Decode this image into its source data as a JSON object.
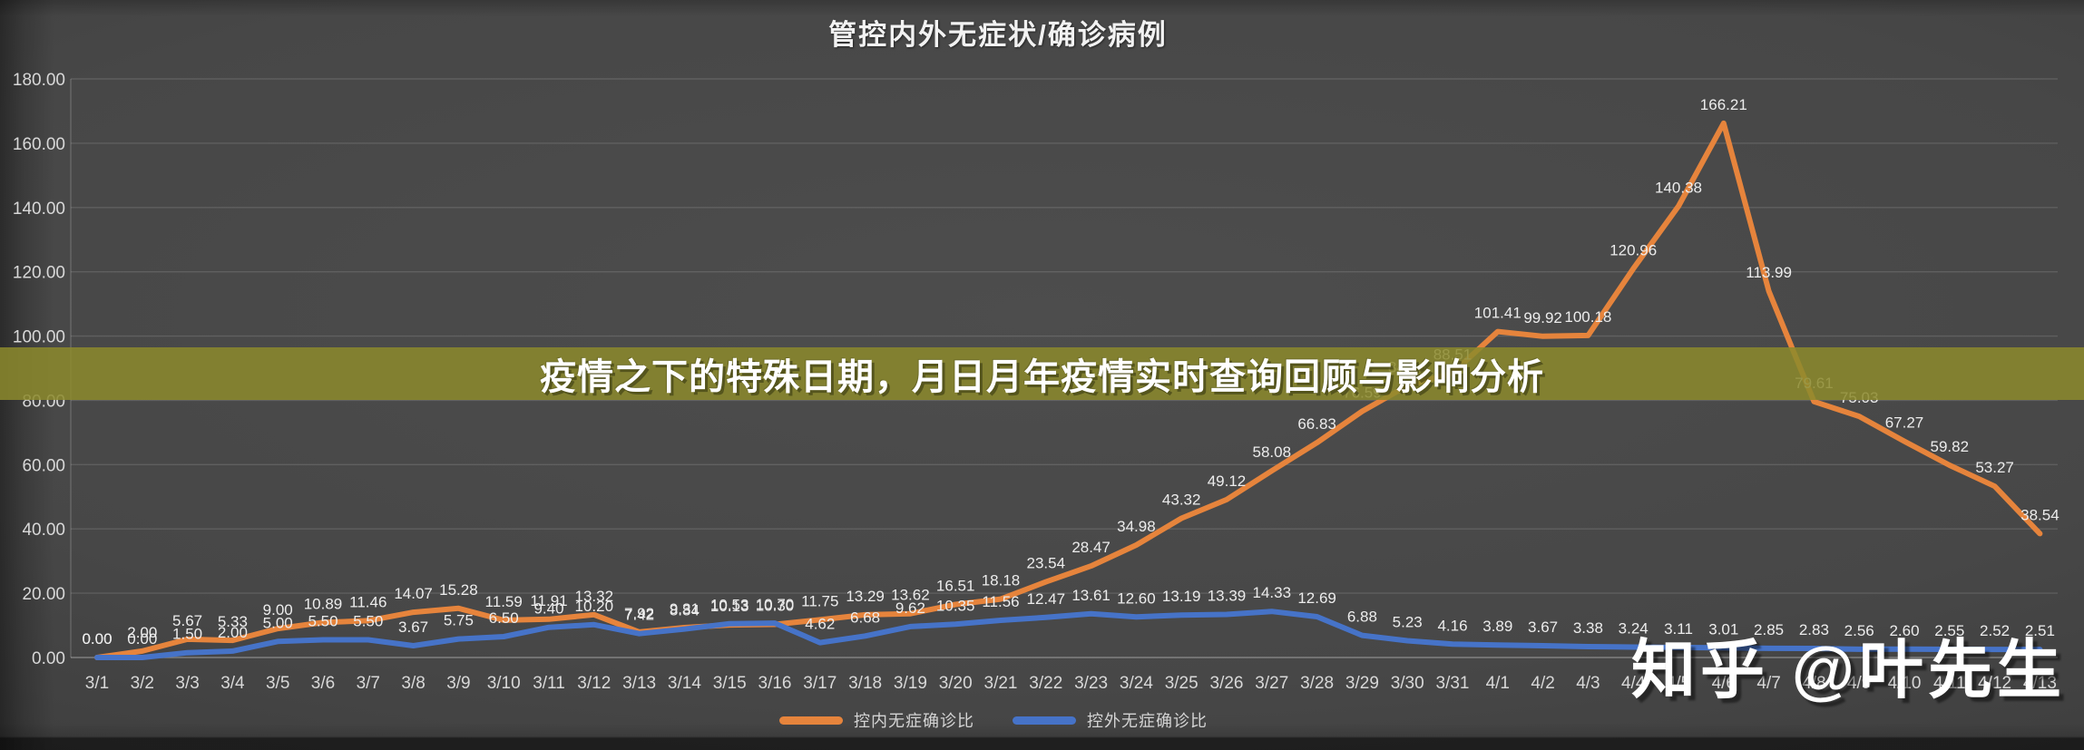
{
  "title": "管控内外无症状/确诊病例",
  "banner": {
    "text": "疫情之下的特殊日期，月日月年疫情实时查询回顾与影响分析",
    "color": "#8c892c"
  },
  "watermark": {
    "text": "知乎 @叶先生"
  },
  "legend": [
    {
      "label": "控内无症确诊比",
      "color": "#e6843c"
    },
    {
      "label": "控外无症确诊比",
      "color": "#4673c8"
    }
  ],
  "chart_data": {
    "type": "line",
    "title": "管控内外无症状/确诊病例",
    "xlabel": "",
    "ylabel": "",
    "ylim": [
      0,
      180
    ],
    "ytick_step": 20,
    "ytick_labels": [
      "0.00",
      "20.00",
      "40.00",
      "60.00",
      "80.00",
      "100.00",
      "120.00",
      "140.00",
      "160.00",
      "180.00"
    ],
    "grid": true,
    "legend_position": "bottom",
    "data_labels": true,
    "categories": [
      "3/1",
      "3/2",
      "3/3",
      "3/4",
      "3/5",
      "3/6",
      "3/7",
      "3/8",
      "3/9",
      "3/10",
      "3/11",
      "3/12",
      "3/13",
      "3/14",
      "3/15",
      "3/16",
      "3/17",
      "3/18",
      "3/19",
      "3/20",
      "3/21",
      "3/22",
      "3/23",
      "3/24",
      "3/25",
      "3/26",
      "3/27",
      "3/28",
      "3/29",
      "3/30",
      "3/31",
      "4/1",
      "4/2",
      "4/3",
      "4/4",
      "4/5",
      "4/6",
      "4/7",
      "4/8",
      "4/9",
      "4/10",
      "4/11",
      "4/12",
      "4/13"
    ],
    "series": [
      {
        "name": "控内无症确诊比",
        "color": "#e6843c",
        "values": [
          0.0,
          2.0,
          5.67,
          5.33,
          9.0,
          10.89,
          11.46,
          14.07,
          15.28,
          11.59,
          11.91,
          13.32,
          7.92,
          9.31,
          10.13,
          10.3,
          11.75,
          13.29,
          13.62,
          16.51,
          18.18,
          23.54,
          28.47,
          34.98,
          43.32,
          49.12,
          58.08,
          66.83,
          76.59,
          84.56,
          88.51,
          101.41,
          99.92,
          100.18,
          120.96,
          140.38,
          166.21,
          113.99,
          79.61,
          75.03,
          67.27,
          59.82,
          53.27,
          38.54
        ]
      },
      {
        "name": "控外无症确诊比",
        "color": "#4673c8",
        "values": [
          0.0,
          0.0,
          1.5,
          2.0,
          5.0,
          5.5,
          5.5,
          3.67,
          5.75,
          6.5,
          9.4,
          10.2,
          7.42,
          8.84,
          10.53,
          10.7,
          4.62,
          6.68,
          9.62,
          10.35,
          11.56,
          12.47,
          13.61,
          12.6,
          13.19,
          13.39,
          14.33,
          12.69,
          6.88,
          5.23,
          4.16,
          3.89,
          3.67,
          3.38,
          3.24,
          3.11,
          3.01,
          2.85,
          2.83,
          2.56,
          2.6,
          2.55,
          2.52,
          2.51
        ]
      }
    ]
  }
}
